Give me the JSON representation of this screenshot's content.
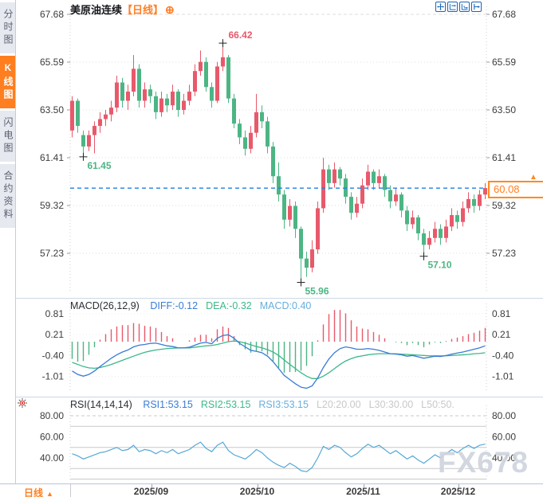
{
  "app": {
    "title": "美原油连续",
    "timeframe_tag": "【日线】",
    "add_icon": "⊕"
  },
  "sidebar": {
    "tabs": [
      {
        "label": "分时图",
        "active": false
      },
      {
        "label": "K线图",
        "active": true
      },
      {
        "label": "闪电图",
        "active": false
      },
      {
        "label": "合约资料",
        "active": false
      }
    ]
  },
  "toolbar": {
    "icons": [
      "move",
      "fit-x",
      "fit-y",
      "pan-right"
    ]
  },
  "watermark": "FX678",
  "bottom_bar": {
    "timeframe": "日线",
    "arrow": "▲"
  },
  "colors": {
    "up": "#e8596b",
    "down": "#4cb584",
    "accent": "#ff7f27",
    "diff_blue": "#3a7bd5",
    "dea_green": "#3cb88a",
    "light_blue": "#68aede",
    "rsi_line": "#56a8d6",
    "last_price_line": "#1e7fe0",
    "axis_text": "#3c3c3c",
    "muted": "#c8c8c8",
    "grid": "#dedede",
    "cross": "#222222"
  },
  "chart_data": [
    {
      "type": "candlestick",
      "title": "美原油连续 日线",
      "y_ticks": [
        {
          "v": 67.68,
          "label": "67.68"
        },
        {
          "v": 65.59,
          "label": "65.59"
        },
        {
          "v": 63.5,
          "label": "63.50"
        },
        {
          "v": 61.41,
          "label": "61.41"
        },
        {
          "v": 59.32,
          "label": "59.32"
        },
        {
          "v": 57.23,
          "label": "57.23"
        }
      ],
      "x_ticks": [
        {
          "index": 14,
          "label": "2025/09"
        },
        {
          "index": 33,
          "label": "2025/10"
        },
        {
          "index": 52,
          "label": "2025/11"
        },
        {
          "index": 69,
          "label": "2025/12"
        }
      ],
      "last_price": {
        "value": 60.08,
        "label": "60.08"
      },
      "annotations": [
        {
          "index": 27,
          "price": 66.42,
          "label": "66.42",
          "kind": "high"
        },
        {
          "index": 2,
          "price": 61.45,
          "label": "61.45",
          "kind": "low"
        },
        {
          "index": 41,
          "price": 55.96,
          "label": "55.96",
          "kind": "low"
        },
        {
          "index": 63,
          "price": 57.1,
          "label": "57.10",
          "kind": "low"
        }
      ],
      "candles": [
        [
          62.6,
          64.1,
          62.3,
          63.9
        ],
        [
          63.9,
          64.0,
          62.5,
          62.8
        ],
        [
          62.4,
          62.6,
          61.45,
          61.9
        ],
        [
          61.9,
          62.6,
          61.7,
          62.4
        ],
        [
          62.4,
          63.0,
          61.6,
          62.8
        ],
        [
          62.8,
          63.4,
          62.5,
          63.1
        ],
        [
          63.1,
          63.5,
          62.8,
          63.3
        ],
        [
          63.3,
          63.9,
          63.0,
          63.6
        ],
        [
          63.6,
          65.0,
          63.4,
          64.7
        ],
        [
          64.7,
          64.9,
          63.6,
          63.9
        ],
        [
          63.9,
          64.6,
          63.5,
          64.3
        ],
        [
          64.3,
          65.9,
          64.1,
          65.3
        ],
        [
          65.3,
          65.5,
          63.6,
          63.9
        ],
        [
          63.9,
          64.7,
          63.6,
          64.4
        ],
        [
          64.4,
          64.6,
          63.8,
          64.1
        ],
        [
          64.1,
          64.3,
          63.1,
          63.4
        ],
        [
          63.4,
          64.3,
          63.2,
          64.0
        ],
        [
          64.0,
          64.2,
          63.4,
          63.7
        ],
        [
          63.7,
          64.6,
          63.5,
          64.3
        ],
        [
          64.3,
          64.4,
          63.2,
          63.5
        ],
        [
          63.5,
          64.2,
          63.3,
          63.9
        ],
        [
          63.9,
          64.6,
          63.7,
          64.3
        ],
        [
          64.3,
          65.5,
          64.1,
          65.2
        ],
        [
          65.2,
          66.1,
          65.0,
          65.6
        ],
        [
          65.6,
          65.8,
          64.3,
          64.5
        ],
        [
          64.5,
          64.7,
          63.6,
          63.9
        ],
        [
          63.9,
          65.6,
          63.8,
          65.4
        ],
        [
          65.4,
          66.42,
          65.2,
          65.8
        ],
        [
          65.8,
          65.9,
          63.8,
          64.0
        ],
        [
          64.0,
          64.2,
          62.7,
          62.9
        ],
        [
          62.9,
          63.1,
          62.0,
          62.3
        ],
        [
          62.3,
          62.6,
          61.5,
          61.8
        ],
        [
          61.8,
          62.8,
          61.6,
          62.5
        ],
        [
          62.5,
          64.2,
          62.3,
          63.4
        ],
        [
          63.4,
          63.7,
          62.7,
          63.0
        ],
        [
          63.0,
          63.2,
          61.6,
          61.9
        ],
        [
          61.9,
          62.1,
          60.3,
          60.6
        ],
        [
          60.6,
          61.2,
          59.5,
          59.8
        ],
        [
          59.8,
          60.0,
          58.3,
          58.7
        ],
        [
          58.7,
          59.6,
          58.4,
          59.3
        ],
        [
          59.3,
          59.5,
          57.9,
          58.3
        ],
        [
          58.3,
          58.4,
          55.96,
          57.0
        ],
        [
          57.0,
          57.3,
          56.2,
          56.6
        ],
        [
          56.6,
          57.8,
          56.4,
          57.4
        ],
        [
          57.4,
          59.5,
          57.2,
          59.2
        ],
        [
          59.2,
          61.4,
          59.0,
          60.9
        ],
        [
          60.9,
          61.1,
          60.0,
          60.3
        ],
        [
          60.3,
          61.2,
          60.1,
          60.9
        ],
        [
          60.9,
          61.0,
          60.2,
          60.5
        ],
        [
          60.5,
          60.7,
          59.4,
          59.7
        ],
        [
          59.7,
          59.9,
          58.7,
          59.0
        ],
        [
          59.0,
          59.7,
          58.8,
          59.4
        ],
        [
          59.4,
          60.5,
          59.2,
          60.2
        ],
        [
          60.2,
          61.1,
          60.0,
          60.8
        ],
        [
          60.8,
          60.9,
          60.0,
          60.3
        ],
        [
          60.3,
          60.9,
          60.1,
          60.6
        ],
        [
          60.6,
          60.7,
          59.7,
          60.0
        ],
        [
          60.0,
          60.2,
          59.2,
          59.5
        ],
        [
          59.5,
          60.1,
          59.3,
          59.8
        ],
        [
          59.8,
          59.9,
          58.8,
          59.1
        ],
        [
          59.1,
          59.3,
          58.2,
          58.5
        ],
        [
          58.5,
          59.1,
          58.3,
          58.8
        ],
        [
          58.8,
          58.9,
          57.8,
          58.1
        ],
        [
          58.1,
          58.3,
          57.1,
          57.6
        ],
        [
          57.6,
          58.2,
          57.4,
          57.9
        ],
        [
          57.9,
          58.6,
          57.7,
          58.3
        ],
        [
          58.3,
          58.5,
          57.6,
          57.9
        ],
        [
          57.9,
          58.7,
          57.7,
          58.4
        ],
        [
          58.4,
          59.2,
          58.2,
          58.9
        ],
        [
          58.9,
          59.1,
          58.3,
          58.6
        ],
        [
          58.6,
          59.5,
          58.4,
          59.2
        ],
        [
          59.2,
          59.9,
          59.0,
          59.6
        ],
        [
          59.6,
          59.8,
          59.0,
          59.3
        ],
        [
          59.3,
          60.0,
          59.1,
          59.8
        ],
        [
          59.8,
          60.3,
          59.6,
          60.08
        ]
      ]
    },
    {
      "type": "macd",
      "legend_title": "MACD(26,12,9)",
      "legend": [
        {
          "label": "DIFF:-0.12",
          "color": "#3a7bd5"
        },
        {
          "label": "DEA:-0.32",
          "color": "#3cb88a"
        },
        {
          "label": "MACD:0.40",
          "color": "#68aede"
        }
      ],
      "y_ticks": [
        {
          "v": 0.81,
          "label": "0.81"
        },
        {
          "v": 0.21,
          "label": "0.21"
        },
        {
          "v": -0.4,
          "label": "-0.40"
        },
        {
          "v": -1.01,
          "label": "-1.01"
        }
      ],
      "diff": [
        -0.85,
        -0.95,
        -1.0,
        -0.95,
        -0.85,
        -0.72,
        -0.6,
        -0.48,
        -0.38,
        -0.3,
        -0.24,
        -0.15,
        -0.1,
        -0.08,
        -0.05,
        -0.04,
        -0.08,
        -0.12,
        -0.14,
        -0.18,
        -0.18,
        -0.16,
        -0.1,
        -0.04,
        -0.02,
        -0.06,
        0.1,
        0.18,
        0.2,
        0.1,
        -0.05,
        -0.15,
        -0.25,
        -0.28,
        -0.32,
        -0.42,
        -0.58,
        -0.78,
        -0.98,
        -1.1,
        -1.22,
        -1.32,
        -1.35,
        -1.28,
        -1.05,
        -0.75,
        -0.5,
        -0.32,
        -0.2,
        -0.15,
        -0.18,
        -0.22,
        -0.22,
        -0.2,
        -0.22,
        -0.25,
        -0.3,
        -0.35,
        -0.36,
        -0.38,
        -0.42,
        -0.4,
        -0.44,
        -0.48,
        -0.45,
        -0.42,
        -0.43,
        -0.4,
        -0.36,
        -0.33,
        -0.3,
        -0.26,
        -0.22,
        -0.18,
        -0.12
      ],
      "dea": [
        -0.6,
        -0.66,
        -0.72,
        -0.76,
        -0.77,
        -0.75,
        -0.71,
        -0.66,
        -0.6,
        -0.54,
        -0.48,
        -0.42,
        -0.36,
        -0.31,
        -0.27,
        -0.24,
        -0.22,
        -0.2,
        -0.19,
        -0.18,
        -0.18,
        -0.18,
        -0.16,
        -0.14,
        -0.12,
        -0.11,
        -0.08,
        -0.04,
        0.0,
        0.02,
        0.0,
        -0.04,
        -0.09,
        -0.14,
        -0.18,
        -0.23,
        -0.3,
        -0.4,
        -0.53,
        -0.66,
        -0.78,
        -0.9,
        -1.0,
        -1.07,
        -1.07,
        -1.0,
        -0.9,
        -0.78,
        -0.66,
        -0.56,
        -0.49,
        -0.44,
        -0.41,
        -0.38,
        -0.36,
        -0.35,
        -0.35,
        -0.35,
        -0.35,
        -0.36,
        -0.37,
        -0.38,
        -0.39,
        -0.4,
        -0.41,
        -0.41,
        -0.41,
        -0.41,
        -0.4,
        -0.39,
        -0.38,
        -0.37,
        -0.35,
        -0.34,
        -0.32
      ]
    },
    {
      "type": "rsi",
      "legend_title": "RSI(14,14,14)",
      "legend": [
        {
          "label": "RSI1:53.15",
          "color": "#3a7bd5"
        },
        {
          "label": "RSI2:53.15",
          "color": "#3cb88a"
        },
        {
          "label": "RSI3:53.15",
          "color": "#68aede"
        },
        {
          "label": "L20:20.00",
          "color": "#c8c8c8"
        },
        {
          "label": "L30:30.00",
          "color": "#c8c8c8"
        },
        {
          "label": "L50:50.",
          "color": "#c8c8c8"
        }
      ],
      "y_ticks": [
        {
          "v": 80,
          "label": "80.00"
        },
        {
          "v": 60,
          "label": "60.00"
        },
        {
          "v": 40,
          "label": "40.00"
        }
      ],
      "ref_lines": [
        {
          "v": 80,
          "style": "dashed"
        },
        {
          "v": 70,
          "style": "solid"
        },
        {
          "v": 50,
          "style": "solid"
        },
        {
          "v": 30,
          "style": "solid"
        },
        {
          "v": 20,
          "style": "solid"
        }
      ],
      "values": [
        44,
        42,
        39,
        41,
        43,
        45,
        46,
        48,
        50,
        47,
        48,
        52,
        46,
        48,
        47,
        44,
        47,
        45,
        48,
        44,
        46,
        48,
        52,
        55,
        49,
        46,
        52,
        55,
        47,
        43,
        41,
        39,
        43,
        48,
        45,
        40,
        36,
        33,
        31,
        35,
        32,
        28,
        27,
        31,
        40,
        51,
        48,
        52,
        50,
        45,
        41,
        44,
        49,
        53,
        50,
        52,
        48,
        44,
        47,
        43,
        39,
        42,
        38,
        35,
        39,
        43,
        40,
        44,
        48,
        45,
        49,
        52,
        49,
        52,
        53.15
      ]
    }
  ]
}
